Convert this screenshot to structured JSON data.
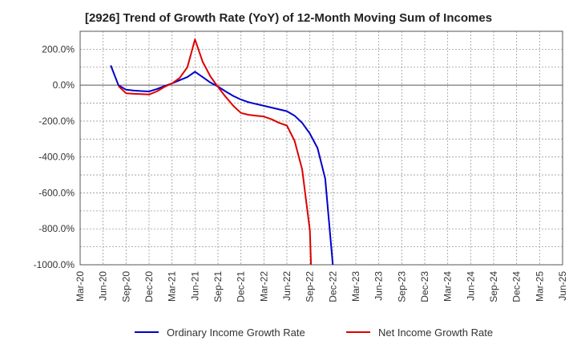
{
  "chart_data": {
    "type": "line",
    "title": "[2926]  Trend of Growth Rate (YoY) of 12-Month Moving Sum of Incomes",
    "xlabel": "",
    "ylabel": "",
    "x_categories": [
      "Mar-20",
      "Jun-20",
      "Sep-20",
      "Dec-20",
      "Mar-21",
      "Jun-21",
      "Sep-21",
      "Dec-21",
      "Mar-22",
      "Jun-22",
      "Sep-22",
      "Dec-22",
      "Mar-23",
      "Jun-23",
      "Sep-23",
      "Dec-23",
      "Mar-24",
      "Jun-24",
      "Sep-24",
      "Dec-24",
      "Mar-25",
      "Jun-25"
    ],
    "y_ticks": [
      200,
      0,
      -200,
      -400,
      -600,
      -800,
      -1000
    ],
    "y_tick_labels": [
      "200.0%",
      "0.0%",
      "-200.0%",
      "-400.0%",
      "-600.0%",
      "-800.0%",
      "-1000.0%"
    ],
    "ylim": [
      -1000,
      300
    ],
    "grid": true,
    "legend_position": "bottom",
    "series": [
      {
        "name": "Ordinary Income Growth Rate",
        "color": "#0000cc",
        "points": [
          [
            "Jul-20",
            110
          ],
          [
            "Aug-20",
            0
          ],
          [
            "Sep-20",
            -25
          ],
          [
            "Oct-20",
            -30
          ],
          [
            "Nov-20",
            -33
          ],
          [
            "Dec-20",
            -35
          ],
          [
            "Jan-21",
            -22
          ],
          [
            "Feb-21",
            -5
          ],
          [
            "Mar-21",
            10
          ],
          [
            "Apr-21",
            28
          ],
          [
            "May-21",
            45
          ],
          [
            "Jun-21",
            75
          ],
          [
            "Jul-21",
            45
          ],
          [
            "Aug-21",
            15
          ],
          [
            "Sep-21",
            -8
          ],
          [
            "Oct-21",
            -35
          ],
          [
            "Nov-21",
            -60
          ],
          [
            "Dec-21",
            -80
          ],
          [
            "Jan-22",
            -95
          ],
          [
            "Feb-22",
            -105
          ],
          [
            "Mar-22",
            -115
          ],
          [
            "Apr-22",
            -125
          ],
          [
            "May-22",
            -135
          ],
          [
            "Jun-22",
            -145
          ],
          [
            "Jul-22",
            -170
          ],
          [
            "Aug-22",
            -210
          ],
          [
            "Sep-22",
            -270
          ],
          [
            "Oct-22",
            -350
          ],
          [
            "Nov-22",
            -520
          ],
          [
            "Dec-22",
            -1000
          ]
        ]
      },
      {
        "name": "Net Income Growth Rate",
        "color": "#dd0000",
        "points": [
          [
            "Aug-20",
            -5
          ],
          [
            "Sep-20",
            -45
          ],
          [
            "Oct-20",
            -48
          ],
          [
            "Nov-20",
            -50
          ],
          [
            "Dec-20",
            -52
          ],
          [
            "Jan-21",
            -35
          ],
          [
            "Feb-21",
            -10
          ],
          [
            "Mar-21",
            10
          ],
          [
            "Apr-21",
            40
          ],
          [
            "May-21",
            100
          ],
          [
            "Jun-21",
            255
          ],
          [
            "Jul-21",
            130
          ],
          [
            "Aug-21",
            50
          ],
          [
            "Sep-21",
            -10
          ],
          [
            "Oct-21",
            -65
          ],
          [
            "Nov-21",
            -115
          ],
          [
            "Dec-21",
            -155
          ],
          [
            "Jan-22",
            -165
          ],
          [
            "Feb-22",
            -170
          ],
          [
            "Mar-22",
            -175
          ],
          [
            "Apr-22",
            -190
          ],
          [
            "May-22",
            -210
          ],
          [
            "Jun-22",
            -225
          ],
          [
            "Jul-22",
            -310
          ],
          [
            "Aug-22",
            -470
          ],
          [
            "Sep-22",
            -810
          ],
          [
            "Sep-22b",
            -1000
          ]
        ]
      }
    ]
  }
}
